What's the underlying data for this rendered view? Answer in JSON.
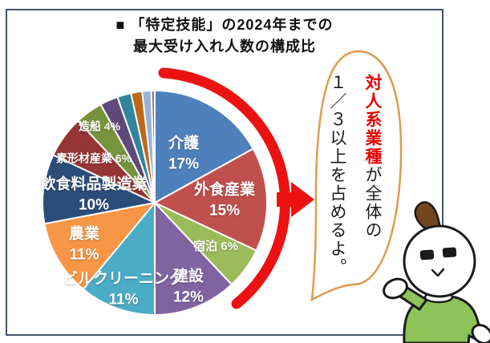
{
  "title": {
    "line1": "■ 「特定技能」の2024年までの",
    "line2": "最大受け入れ人数の構成比"
  },
  "chart_data": {
    "type": "pie",
    "title": "「特定技能」の2024年までの最大受け入れ人数の構成比",
    "value_unit": "percent",
    "rotation": "clockwise-from-top",
    "legend": "none",
    "segments": [
      {
        "label": "介護",
        "pct_label": "17%",
        "value": 17,
        "color": "#4E80BC"
      },
      {
        "label": "外食産業",
        "pct_label": "15%",
        "value": 15,
        "color": "#C0504D"
      },
      {
        "label": "宿泊",
        "pct_label": "6%",
        "value": 6,
        "color": "#9BBB59"
      },
      {
        "label": "建設",
        "pct_label": "12%",
        "value": 12,
        "color": "#8064A2"
      },
      {
        "label": "ビルクリーニング",
        "pct_label": "11%",
        "value": 11,
        "color": "#4BACC6"
      },
      {
        "label": "農業",
        "pct_label": "11%",
        "value": 11,
        "color": "#F79646"
      },
      {
        "label": "飲食料品製造業",
        "pct_label": "10%",
        "value": 10,
        "color": "#2C4D79"
      },
      {
        "label": "素形材産業",
        "pct_label": "6%",
        "value": 6,
        "color": "#943634"
      },
      {
        "label": "造船",
        "pct_label": "4%",
        "value": 4,
        "color": "#77933C"
      },
      {
        "label": "",
        "pct_label": "",
        "value": 2.6,
        "color": "#5F497A"
      },
      {
        "label": "",
        "pct_label": "",
        "value": 2.0,
        "color": "#31859C"
      },
      {
        "label": "",
        "pct_label": "",
        "value": 1.6,
        "color": "#BF6817"
      },
      {
        "label": "",
        "pct_label": "",
        "value": 1.3,
        "color": "#95B3D7"
      },
      {
        "label": "",
        "pct_label": "",
        "value": 0.5,
        "color": "#B06A67"
      }
    ]
  },
  "annotation": {
    "arrow_color": "#EE1111"
  },
  "callout": {
    "highlight_text": "対人系業種",
    "rest_text": "が全体の",
    "second_column": "１／３以上を占めるよ。",
    "highlight_color": "#E60000",
    "bubble_border_color": "#DE9B4D"
  },
  "mascot": {
    "shirt_color": "#8DC359",
    "sprout_color": "#744620",
    "outline_color": "#1b1b1b"
  },
  "page": {
    "frame_border_color": "#44546A"
  }
}
